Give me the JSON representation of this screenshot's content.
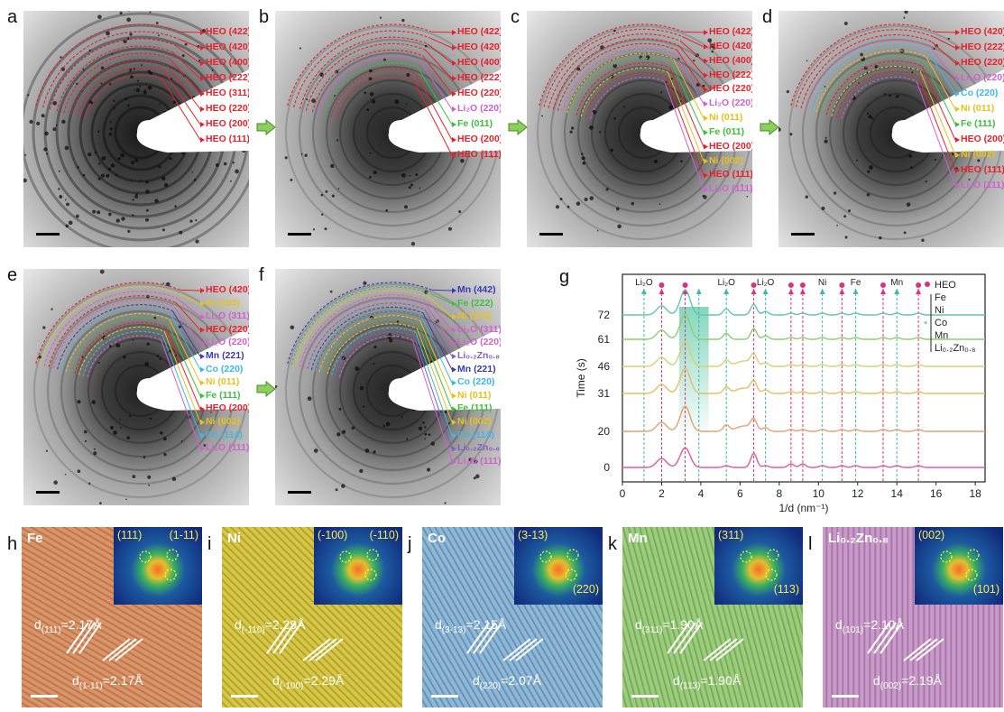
{
  "panels": {
    "a": {
      "letter": "a",
      "labels": [
        "HEO (422)",
        "HEO (420)",
        "HEO (400)",
        "HEO (222)",
        "HEO (311)",
        "HEO (220)",
        "HEO (200)",
        "HEO (111)"
      ]
    },
    "b": {
      "letter": "b",
      "labels": [
        "HEO (422)",
        "HEO (420)",
        "HEO (400)",
        "HEO (222)",
        "HEO (220)",
        "Li₂O (220)",
        "Fe (011)",
        "HEO (200)",
        "HEO (111)"
      ]
    },
    "c": {
      "letter": "c",
      "labels": [
        "HEO (422)",
        "HEO (420)",
        "HEO (400)",
        "HEO (222)",
        "HEO (220)",
        "Li₂O (220)",
        "Ni (011)",
        "Fe (011)",
        "HEO (200)",
        "Ni (002)",
        "HEO (111)",
        "Li₂O (111)"
      ]
    },
    "d": {
      "letter": "d",
      "labels": [
        "HEO (420)",
        "HEO (222)",
        "HEO (220)",
        "Li₂O (220)",
        "Co (220)",
        "Ni (011)",
        "Fe (111)",
        "HEO (200)",
        "Ni (002)",
        "HEO (111)",
        "Li₂O (111)"
      ]
    },
    "e": {
      "letter": "e",
      "labels": [
        "HEO (420)",
        "Ni (103)",
        "Li₂O (311)",
        "HEO (220)",
        "Li₂O (220)",
        "Mn (221)",
        "Co (220)",
        "Ni (011)",
        "Fe (111)",
        "HEO (200)",
        "Ni (002)",
        "Co (114)",
        "Li₂O (111)"
      ]
    },
    "f": {
      "letter": "f",
      "labels": [
        "Mn (442)",
        "Fe (222)",
        "Ni (103)",
        "Li₂O (311)",
        "Li₂O (220)",
        "Li₀.₂Zn₀.₈ (101)",
        "Mn (221)",
        "Co (220)",
        "Ni (011)",
        "Fe (111)",
        "Ni (002)",
        "Co (114)",
        "Li₀.₂Zn₀.₈ (100)",
        "Li₂O (111)"
      ]
    }
  },
  "chart_data": {
    "type": "line",
    "letter": "g",
    "xlabel": "1/d (nm⁻¹)",
    "ylabel": "Time (s)",
    "xlim": [
      0,
      18.5
    ],
    "xticks": [
      "0",
      "2",
      "4",
      "6",
      "8",
      "10",
      "12",
      "14",
      "16",
      "18"
    ],
    "yticks": [
      "0",
      "20",
      "31",
      "46",
      "61",
      "72"
    ],
    "series": [
      {
        "name": "0",
        "color": "#e05a9a"
      },
      {
        "name": "20",
        "color": "#e8a070"
      },
      {
        "name": "31",
        "color": "#e6c060"
      },
      {
        "name": "46",
        "color": "#d8d070"
      },
      {
        "name": "61",
        "color": "#8ccf72"
      },
      {
        "name": "72",
        "color": "#5ec8a8"
      }
    ],
    "peak_markers": [
      {
        "x": 1.1,
        "label": "Li₂O",
        "type": "teal"
      },
      {
        "x": 2.0,
        "label": "",
        "type": "heo"
      },
      {
        "x": 3.2,
        "label": "",
        "type": "heo"
      },
      {
        "x": 3.9,
        "label": "",
        "type": "teal"
      },
      {
        "x": 5.3,
        "label": "Li₂O",
        "type": "teal"
      },
      {
        "x": 6.7,
        "label": "",
        "type": "heo"
      },
      {
        "x": 7.3,
        "label": "Li₂O",
        "type": "teal"
      },
      {
        "x": 8.6,
        "label": "",
        "type": "heo"
      },
      {
        "x": 9.2,
        "label": "",
        "type": "heo"
      },
      {
        "x": 10.2,
        "label": "Ni",
        "type": "teal"
      },
      {
        "x": 11.2,
        "label": "",
        "type": "heo"
      },
      {
        "x": 11.9,
        "label": "Fe",
        "type": "teal"
      },
      {
        "x": 13.3,
        "label": "",
        "type": "heo"
      },
      {
        "x": 14.0,
        "label": "Mn",
        "type": "teal"
      },
      {
        "x": 15.1,
        "label": "",
        "type": "heo"
      }
    ],
    "legend": [
      "HEO",
      "Fe",
      "Ni",
      "Co",
      "Mn",
      "Li₀.₂Zn₀.₈"
    ]
  },
  "tem_panels": [
    {
      "letter": "h",
      "element": "Fe",
      "fft1": "(111)",
      "fft2": "(1-11)",
      "d1_sub": "(111)",
      "d1_val": "=2.17Å",
      "d2_sub": "(1-11)",
      "d2_val": "=2.17Å"
    },
    {
      "letter": "i",
      "element": "Ni",
      "fft1": "(-100)",
      "fft2": "(-110)",
      "d1_sub": "(-110)",
      "d1_val": "=2.29Å",
      "d2_sub": "(-100)",
      "d2_val": "=2.29Å"
    },
    {
      "letter": "j",
      "element": "Co",
      "fft1": "(3-13)",
      "fft2": "(220)",
      "d1_sub": "(3-13)",
      "d1_val": "=2.15Å",
      "d2_sub": "(220)",
      "d2_val": "=2.07Å"
    },
    {
      "letter": "k",
      "element": "Mn",
      "fft1": "(311)",
      "fft2": "(113)",
      "d1_sub": "(311)",
      "d1_val": "=1.90Å",
      "d2_sub": "(113)",
      "d2_val": "=1.90Å"
    },
    {
      "letter": "l",
      "element": "Li₀.₂Zn₀.₈",
      "fft1": "(002)",
      "fft2": "(101)",
      "d1_sub": "(101)",
      "d1_val": "=2.10Å",
      "d2_sub": "(002)",
      "d2_val": "=2.19Å"
    }
  ],
  "colors": {
    "heo": "#e8202a",
    "li2o": "#d060d0",
    "fe": "#3cc03c",
    "ni": "#e6c21a",
    "co": "#3cb8e6",
    "mn": "#3a3ab8",
    "lizn": "#8060c0"
  }
}
